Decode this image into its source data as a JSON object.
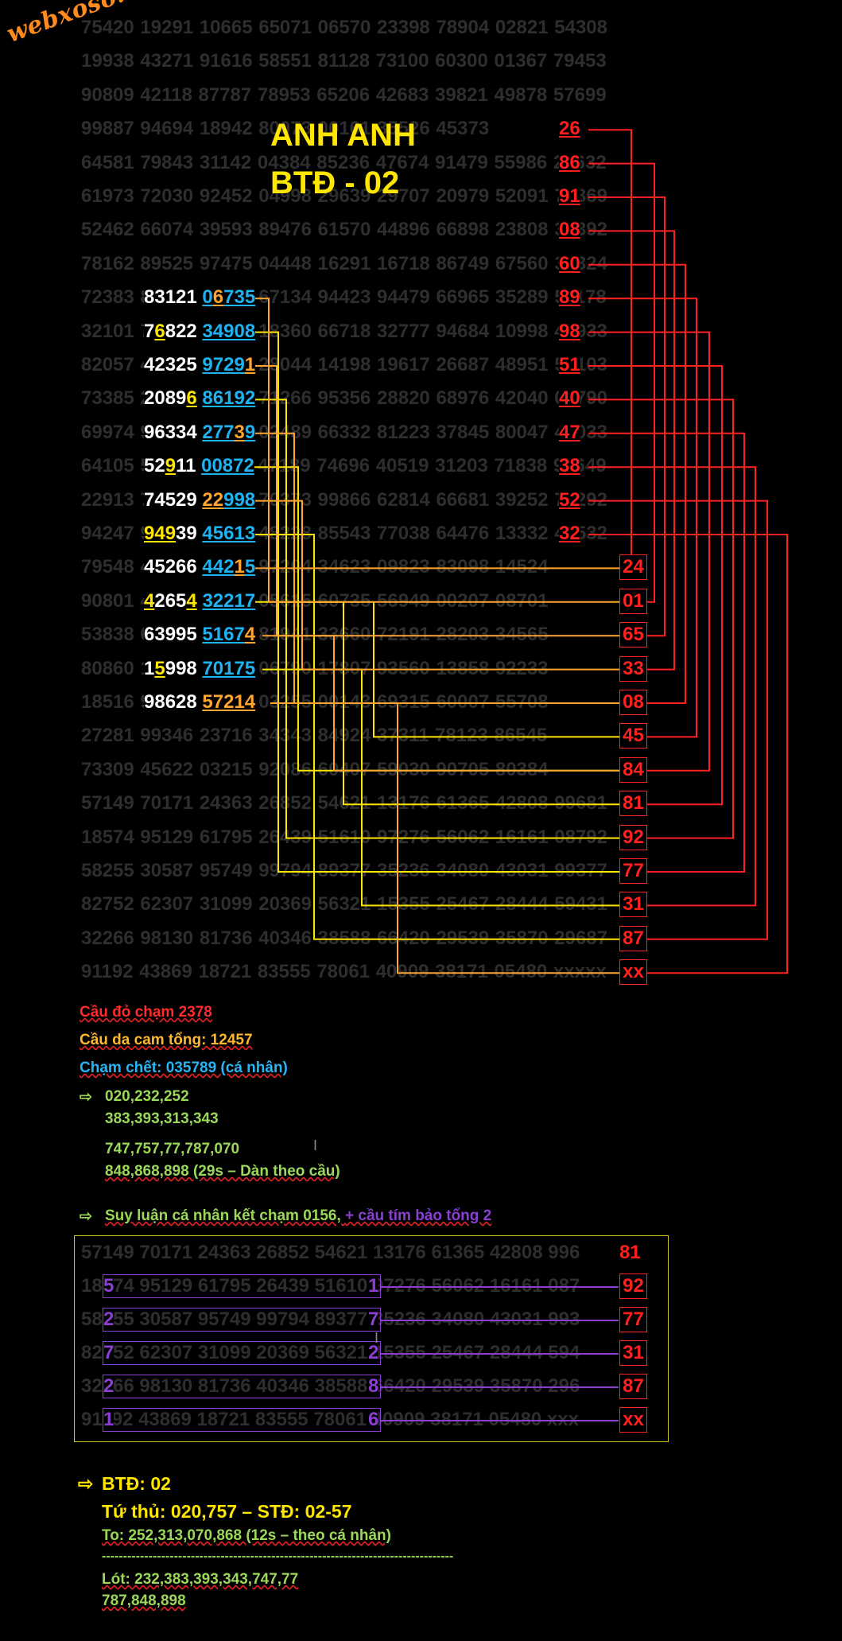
{
  "watermark": "webxoso.net",
  "title": "ANH ANH",
  "subtitle": "BTĐ - 02",
  "bg_rows": [
    "75420 19291 10665 65071 06570 23398 78904 02821 54308",
    "19938 43271 91616 58551 81128 73100 60300 01367 79453",
    "90809 42118 87787 78953 65206 42683 39821 49878 57699",
    "99887 94694 18942 80073 00161 35526 45373",
    "64581 79843 31142 04384 85236 47674 91479 55986 22632",
    "61973 72030 92452 04998 29639 29707 20979 52091 73369",
    "52462 66074 39593 89476 61570 44896 66898 23808 37392",
    "78162 89525 97475 04448 16291 16718 86749 67560 39324",
    "72383 83121 06735 67134 94423 94479 66965 35289 51178",
    "32101 76822 34908 18360 66718 32777 94684 10998 46933",
    "82057 42325 97291 28044 14198 19617 26687 48951 53103",
    "73385 20896 86192 71266 95356 28820 68976 42040 07790",
    "69974 96334 27739 02489 66332 81223 37845 80047 43033",
    "64105 52911 00872 47189 74696 40519 31203 71838 99649",
    "22913 74529 22998 70373 99866 62814 66681 39252 78292",
    "94247 94939 45613 48228 85543 77038 64476 13332 48532",
    "79548 45266 44215 97204 34623 09823 83098 14524",
    "90801 42654 32217 05615 60735 56949 00207 08701",
    "53838 63995 51674 81941 33660 72191 28203 34565",
    "80860 15998 70175 06790 17807 93560 13858 92233",
    "18516 98628 57214 03255 00143 69315 60007 55708",
    "27281 99346 23716 34343 84924 37311 78123 86545",
    "73309 45622 03215 92086 60407 59030 90705 80384",
    "57149 70171 24363 26852 54621 13176 61365 42808 99681",
    "18574 95129 61795 26439 51610 97276 56062 16161 08792",
    "58255 30587 95749 99794 89377 35236 34080 43031 99377",
    "82752 62307 31099 20369 56321 15355 25467 28444 59431",
    "32266 98130 81736 40346 38588 66420 29539 35870 29687",
    "91192 43869 18721 83555 78061 40909 38171 05480 xxxxx"
  ],
  "hl_rows": [
    {
      "p": "83121 ",
      "b": "06735",
      "b1": "",
      "bo": "6",
      "b2": "735"
    },
    {
      "p": "7",
      "p2": "6",
      "p3": "822 ",
      "b": "34908"
    },
    {
      "p": "42325 ",
      "b": "9729",
      "o": "1"
    },
    {
      "p": "2089",
      "y": "6",
      "b": " 86192"
    },
    {
      "p": "96334 ",
      "b": "277",
      "o2": "3",
      "b2": "9"
    },
    {
      "p": "52",
      "y2": "9",
      "p3": "11 ",
      "b": "00872"
    },
    {
      "p": "74529 ",
      "o3": "22",
      "b": "998"
    },
    {
      "y3": "949",
      "p": "39 ",
      "b": "45613"
    },
    {
      "p": "45266 ",
      "b": "442",
      "o4": "1",
      "b2": "5"
    },
    {
      "y4": "4",
      "p": "265",
      "y5": "4",
      "b": " 32217"
    },
    {
      "p": "63995 ",
      "b": "5167",
      "o": "4"
    },
    {
      "p": "1",
      "y6": "5",
      "p3": "998 ",
      "b": "70175"
    },
    {
      "p": "98628 ",
      "o5": "57214"
    }
  ],
  "red_pairs": [
    "26",
    "86",
    "91",
    "08",
    "60",
    "89",
    "98",
    "51",
    "40",
    "47",
    "38",
    "52",
    "32"
  ],
  "red_boxes": [
    "24",
    "01",
    "65",
    "33",
    "08",
    "45",
    "84",
    "81",
    "92",
    "77",
    "31",
    "87",
    "xx"
  ],
  "notes": {
    "cau_do": "Cầu đỏ chạm 2378",
    "cau_dacam": "Cầu da cam tổng: 12457",
    "cham_chet": "Chạm chết: 035789 (cá nhân)",
    "arrow": "⇨",
    "dan1a": "020,232,252",
    "dan1b": "383,393,313,343",
    "dan2a": "747,757,77,787,070",
    "dan2b": "848,868,898 (29s – Dàn theo cầu)",
    "suy_luan": "Suy luận cá nhân kết chạm 0156, ",
    "suy_luan_purple": "+ cầu tím bảo tổng 2"
  },
  "purple_rows": [
    {
      "row": "57149 70171 24363 26852 54621 13176 61365 42808 996",
      "end": "81",
      "boxed": false
    },
    {
      "row": "18574 95129 61795 26439 51610 97276 56062 16161 087",
      "end": "92",
      "boxed": true,
      "d1": "5",
      "d2": "1"
    },
    {
      "row": "58255 30587 95749 99794 89377 35236 34080 43031 993",
      "end": "77",
      "boxed": true,
      "d1": "2",
      "d2": "7"
    },
    {
      "row": "82752 62307 31099 20369 56321 15355 25467 28444 594",
      "end": "31",
      "boxed": true,
      "d1": "7",
      "d2": "2"
    },
    {
      "row": "32266 98130 81736 40346 38588 66420 29539 35870 296",
      "end": "87",
      "boxed": true,
      "d1": "2",
      "d2": "8"
    },
    {
      "row": "91192 43869 18721 83555 78061 40909 38171 05480 xxx",
      "end": "xx",
      "boxed": true,
      "d1": "1",
      "d2": "6"
    }
  ],
  "final": {
    "arrow": "⇨",
    "btd": "BTĐ: 02",
    "tu_thu": "Tứ thủ: 020,757  – STĐ: 02-57",
    "to": "To: 252,313,070,868 (12s – theo cá nhân)",
    "dashes": "-----------------------------------------------------------------------------------",
    "lot1": "Lót: 232,383,393,343,747,77",
    "lot2": "787,848,898"
  },
  "colors": {
    "red": "#ff2020",
    "yellow": "#ffe600",
    "orange": "#ffa530",
    "blue": "#1fb2f0",
    "purple": "#8a3fd1",
    "green": "#9bd85a"
  }
}
